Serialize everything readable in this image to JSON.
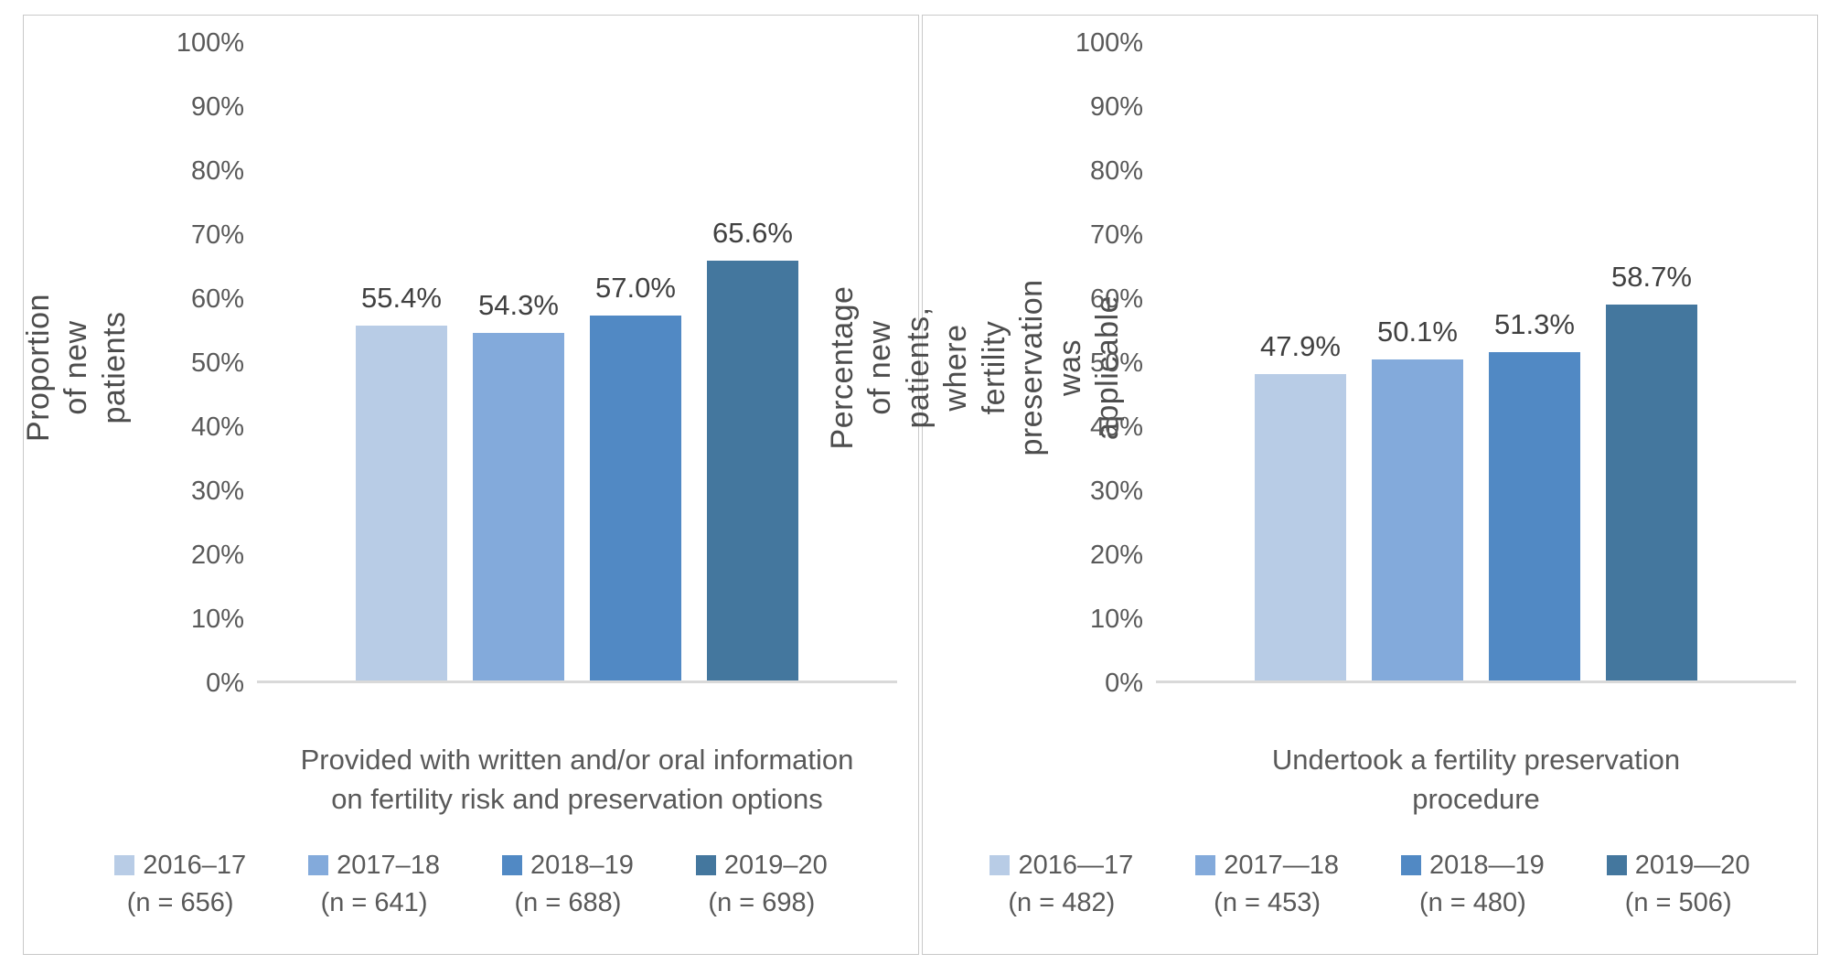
{
  "colors": {
    "background": "#FFFFFF",
    "panel_border": "#C9C9C9",
    "axis_line": "#D9D9D9",
    "tick_text": "#595959",
    "value_label_text": "#404040",
    "series": [
      "#B8CCE6",
      "#83AADB",
      "#5189C4",
      "#44779E"
    ]
  },
  "chart_data": [
    {
      "type": "bar",
      "title": "",
      "ylabel": "Proportion of new patients",
      "xlabel": "Provided with written and/or oral information\non fertility risk and preservation options",
      "ylim": [
        0,
        100
      ],
      "yticks": [
        "0%",
        "10%",
        "20%",
        "30%",
        "40%",
        "50%",
        "60%",
        "70%",
        "80%",
        "90%",
        "100%"
      ],
      "grid": false,
      "legend_position": "bottom",
      "categories": [
        "2016–17",
        "2017–18",
        "2018–19",
        "2019–20"
      ],
      "values": [
        55.4,
        54.3,
        57.0,
        65.6
      ],
      "value_labels": [
        "55.4%",
        "54.3%",
        "57.0%",
        "65.6%"
      ],
      "legend": [
        {
          "label": "2016–17",
          "n": "(n = 656)"
        },
        {
          "label": "2017–18",
          "n": "(n = 641)"
        },
        {
          "label": "2018–19",
          "n": "(n = 688)"
        },
        {
          "label": "2019–20",
          "n": "(n = 698)"
        }
      ]
    },
    {
      "type": "bar",
      "title": "",
      "ylabel": "Percentage of new patients, where\nfertility preservation was applicable",
      "xlabel": "Undertook a fertility preservation\nprocedure",
      "ylim": [
        0,
        100
      ],
      "yticks": [
        "0%",
        "10%",
        "20%",
        "30%",
        "40%",
        "50%",
        "60%",
        "70%",
        "80%",
        "90%",
        "100%"
      ],
      "grid": false,
      "legend_position": "bottom",
      "categories": [
        "2016—17",
        "2017—18",
        "2018—19",
        "2019—20"
      ],
      "values": [
        47.9,
        50.1,
        51.3,
        58.7
      ],
      "value_labels": [
        "47.9%",
        "50.1%",
        "51.3%",
        "58.7%"
      ],
      "legend": [
        {
          "label": "2016—17",
          "n": "(n = 482)"
        },
        {
          "label": "2017—18",
          "n": "(n = 453)"
        },
        {
          "label": "2018—19",
          "n": "(n = 480)"
        },
        {
          "label": "2019—20",
          "n": "(n = 506)"
        }
      ]
    }
  ]
}
